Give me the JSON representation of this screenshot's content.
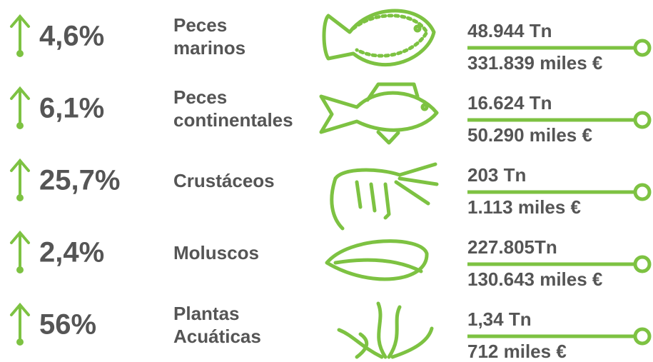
{
  "rows": [
    {
      "change": "4,6%",
      "name": [
        "Peces",
        "marinos"
      ],
      "volume": "48.944 Tn",
      "value": "331.839 miles €"
    },
    {
      "change": "6,1%",
      "name": [
        "Peces",
        "continentales"
      ],
      "volume": "16.624 Tn",
      "value": "50.290 miles €"
    },
    {
      "change": "25,7%",
      "name": [
        "Crustáceos"
      ],
      "volume": "203 Tn",
      "value": "1.113 miles €"
    },
    {
      "change": "2,4%",
      "name": [
        "Moluscos"
      ],
      "volume": "227.805Tn",
      "value": "130.643 miles €"
    },
    {
      "change": "56%",
      "name": [
        "Plantas",
        "Acuáticas"
      ],
      "volume": "1,34 Tn",
      "value": "712 miles €"
    }
  ]
}
